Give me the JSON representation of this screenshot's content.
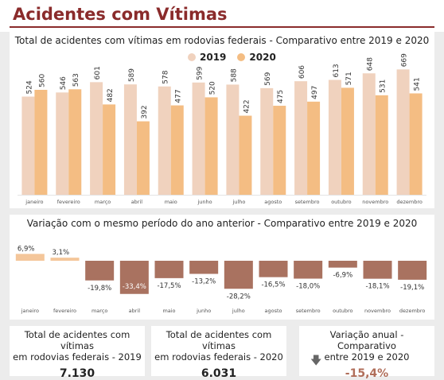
{
  "page": {
    "title": "Acidentes com Vítimas"
  },
  "colors": {
    "brand": "#8a2b2b",
    "y2019": "#f0d2be",
    "y2020": "#f4bd83",
    "negative": "#a97260",
    "positive": "#f4c69a"
  },
  "chart_data": [
    {
      "type": "bar",
      "title": "Total de acidentes com vítimas em rodovias federais - Comparativo entre 2019 e 2020",
      "categories": [
        "janeiro",
        "fevereiro",
        "março",
        "abril",
        "maio",
        "junho",
        "julho",
        "agosto",
        "setembro",
        "outubro",
        "novembro",
        "dezembro"
      ],
      "series": [
        {
          "name": "2019",
          "values": [
            524,
            546,
            601,
            589,
            578,
            599,
            588,
            569,
            606,
            613,
            648,
            669
          ]
        },
        {
          "name": "2020",
          "values": [
            560,
            563,
            482,
            392,
            477,
            520,
            422,
            475,
            497,
            571,
            531,
            541
          ]
        }
      ],
      "ylim": [
        0,
        700
      ],
      "legend": "top"
    },
    {
      "type": "bar",
      "title": "Variação com o mesmo período do ano anterior - Comparativo entre 2019 e 2020",
      "categories": [
        "janeiro",
        "fevereiro",
        "março",
        "abril",
        "maio",
        "junho",
        "julho",
        "agosto",
        "setembro",
        "outubro",
        "novembro",
        "dezembro"
      ],
      "values": [
        6.9,
        3.1,
        -19.8,
        -33.4,
        -17.5,
        -13.2,
        -28.2,
        -16.5,
        -18.0,
        -6.9,
        -18.1,
        -19.1
      ],
      "labels": [
        "6,9%",
        "3,1%",
        "-19,8%",
        "-33,4%",
        "-17,5%",
        "-13,2%",
        "-28,2%",
        "-16,5%",
        "-18,0%",
        "-6,9%",
        "-18,1%",
        "-19,1%"
      ],
      "ylim": [
        -35,
        10
      ]
    }
  ],
  "cards": [
    {
      "label_line1": "Total de acidentes com vítimas",
      "label_line2": "em rodovias federais - 2019",
      "value": "7.130"
    },
    {
      "label_line1": "Total de acidentes com vítimas",
      "label_line2": "em rodovias federais - 2020",
      "value": "6.031"
    },
    {
      "label_line1": "Variação anual - Comparativo",
      "label_line2": "entre 2019 e 2020",
      "value": "-15,4%",
      "icon": "arrow-down-icon"
    }
  ]
}
